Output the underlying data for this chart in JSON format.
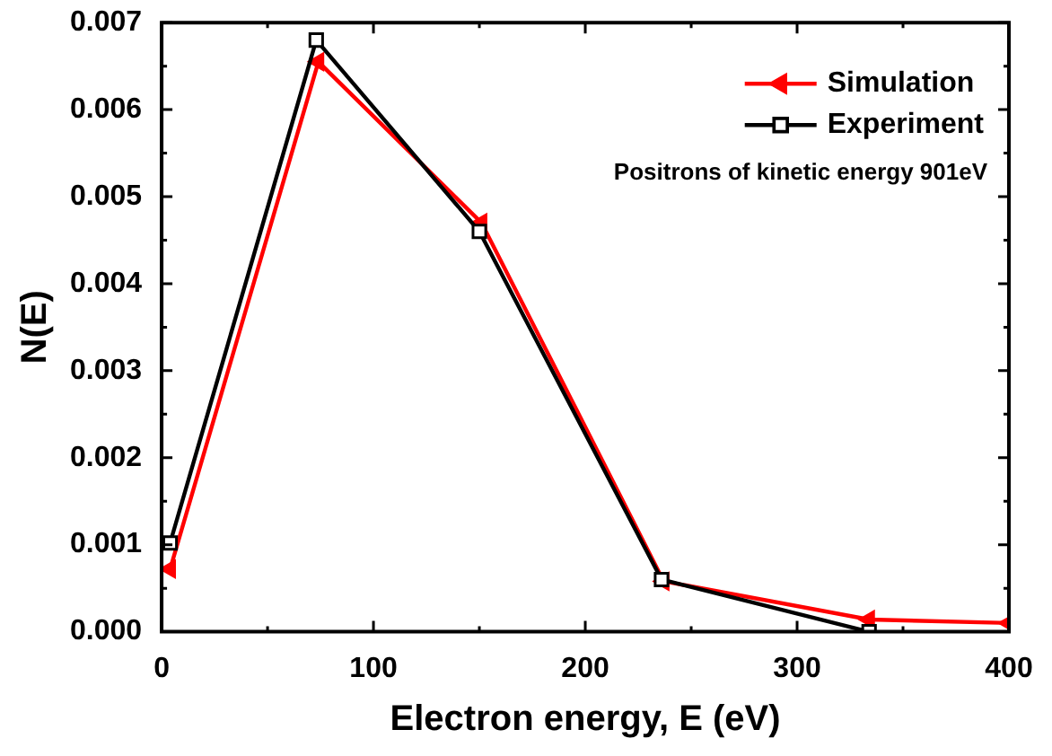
{
  "chart_data": {
    "type": "line",
    "xlabel": "Electron energy, E (eV)",
    "ylabel": "N(E)",
    "xlim": [
      0,
      400
    ],
    "xticks": [
      0,
      100,
      200,
      300,
      400
    ],
    "ylim": [
      0,
      0.007
    ],
    "yticks": [
      {
        "value": 0,
        "label": "0.000"
      },
      {
        "value": 0.001,
        "label": "0.001"
      },
      {
        "value": 0.002,
        "label": "0.002"
      },
      {
        "value": 0.003,
        "label": "0.003"
      },
      {
        "value": 0.004,
        "label": "0.004"
      },
      {
        "value": 0.005,
        "label": "0.005"
      },
      {
        "value": 0.006,
        "label": "0.006"
      },
      {
        "value": 0.007,
        "label": "0.007"
      }
    ],
    "grid": false,
    "legend": "top right",
    "line_style": "solid",
    "annotations": [
      "Positrons of kinetic energy 901eV"
    ],
    "series": [
      {
        "name": "Simulation",
        "color": "#ff0000",
        "marker": "triangle",
        "x": [
          4,
          74,
          151,
          237,
          334,
          400
        ],
        "values": [
          0.00072,
          0.00655,
          0.0047,
          0.00058,
          0.00014,
          0.0001
        ]
      },
      {
        "name": "Experiment",
        "color": "#000000",
        "marker": "square",
        "x": [
          4,
          73,
          150,
          236,
          334
        ],
        "values": [
          0.00102,
          0.0068,
          0.0046,
          0.0006,
          0
        ]
      }
    ]
  }
}
